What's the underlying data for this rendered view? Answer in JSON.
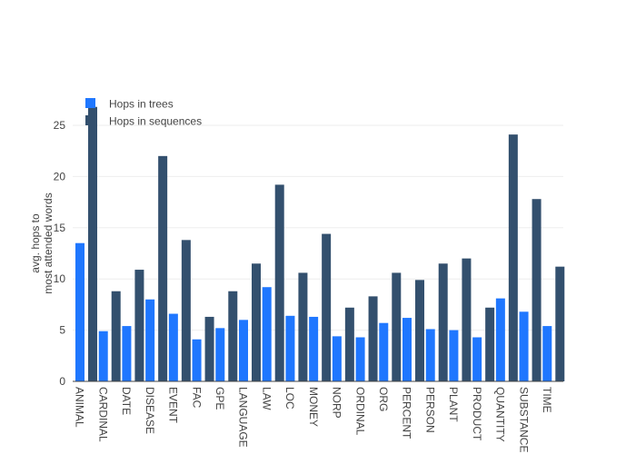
{
  "chart_data": {
    "type": "bar",
    "title": "",
    "xlabel": "",
    "ylabel_lines": [
      "avg. hops to",
      "most attended words"
    ],
    "ylim": [
      0,
      27
    ],
    "yticks": [
      0,
      5,
      10,
      15,
      20,
      25
    ],
    "grid": true,
    "legend_position": "top-left",
    "categories": [
      "ANIMAL",
      "CARDINAL",
      "DATE",
      "DISEASE",
      "EVENT",
      "FAC",
      "GPE",
      "LANGUAGE",
      "LAW",
      "LOC",
      "MONEY",
      "NORP",
      "ORDINAL",
      "ORG",
      "PERCENT",
      "PERSON",
      "PLANT",
      "PRODUCT",
      "QUANTITY",
      "SUBSTANCE",
      "TIME"
    ],
    "series": [
      {
        "name": "Hops in trees",
        "color": "#1f77ff",
        "values": [
          13.5,
          4.9,
          5.4,
          8.0,
          6.6,
          4.1,
          5.2,
          6.0,
          9.2,
          6.4,
          6.3,
          4.4,
          4.3,
          5.7,
          6.2,
          5.1,
          5.0,
          4.3,
          8.1,
          6.8,
          5.4
        ]
      },
      {
        "name": "Hops in sequences",
        "color": "#33506e",
        "values": [
          26.8,
          8.8,
          10.9,
          22.0,
          13.8,
          6.3,
          8.8,
          11.5,
          19.2,
          10.6,
          14.4,
          7.2,
          8.3,
          10.6,
          9.9,
          11.5,
          12.0,
          7.2,
          24.1,
          17.8,
          11.2
        ]
      }
    ]
  }
}
